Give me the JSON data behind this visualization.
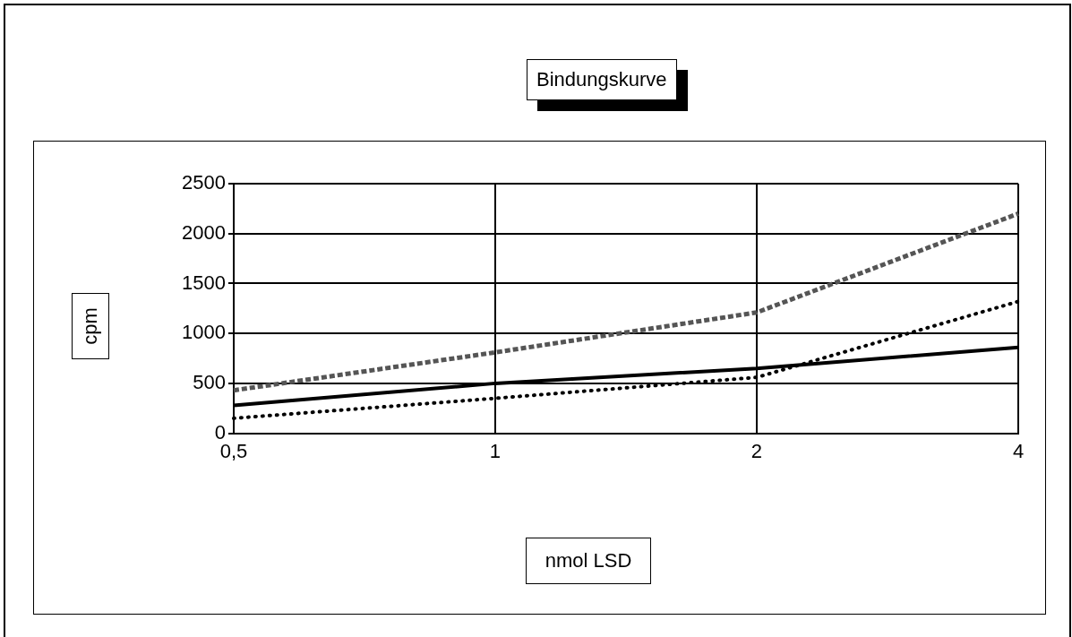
{
  "chart_data": {
    "type": "line",
    "title": "Bindungskurve",
    "xlabel": "nmol LSD",
    "ylabel": "cpm",
    "categories": [
      "0,5",
      "1",
      "2",
      "4"
    ],
    "series": [
      {
        "color": "#555555",
        "line_style": "dashed",
        "values": [
          430,
          810,
          1210,
          2200
        ]
      },
      {
        "color": "#000000",
        "line_style": "solid",
        "values": [
          280,
          500,
          650,
          860
        ]
      },
      {
        "color": "#000000",
        "line_style": "dotted",
        "values": [
          150,
          350,
          560,
          1320
        ]
      }
    ],
    "ylim": [
      0,
      2500
    ],
    "yticks": [
      0,
      500,
      1000,
      1500,
      2000,
      2500
    ],
    "grid": true,
    "legend": false,
    "marker": "none"
  }
}
